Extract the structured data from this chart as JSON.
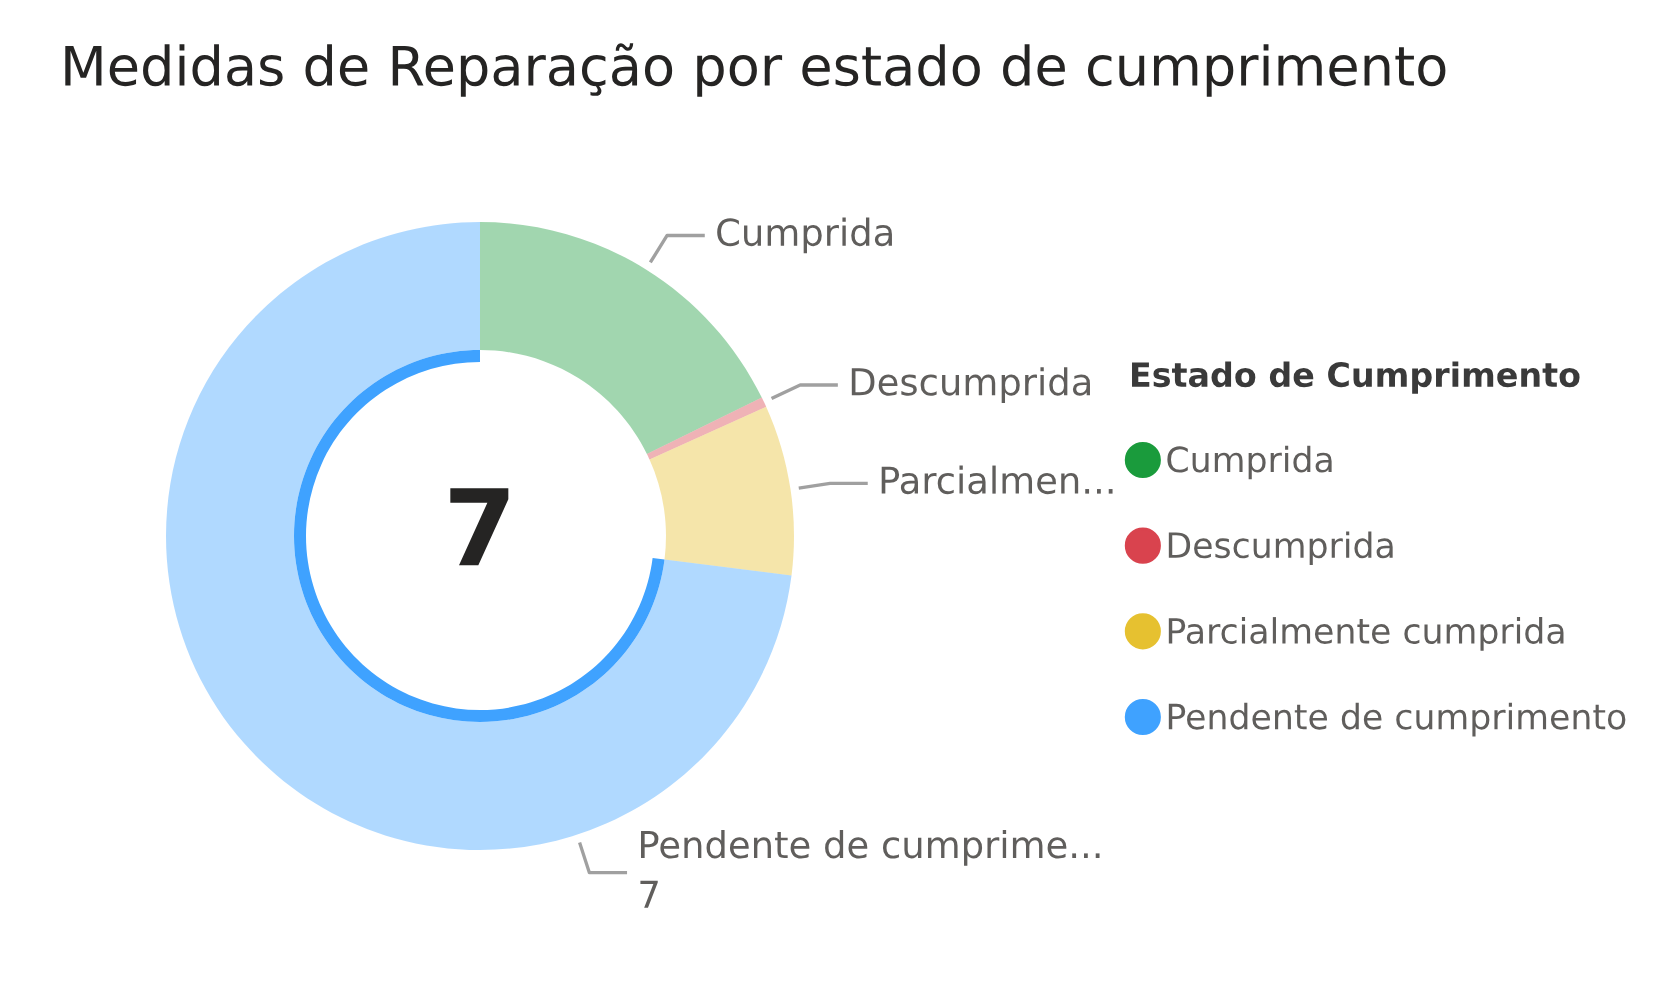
{
  "chart_data": {
    "type": "donut",
    "title": "Medidas de Reparação por estado de cumprimento",
    "categories": [
      "Cumprida",
      "Descumprida",
      "Parcialmente cumprida",
      "Pendente de cumprimento"
    ],
    "values": [
      1.7,
      0.05,
      0.84,
      7
    ],
    "colors": [
      "#1a9b3c",
      "#d9434e",
      "#e6c130",
      "#3fa2ff"
    ],
    "value_labels": [
      "Cumprida",
      "Descumprida",
      "Parcialmen...",
      "Pendente de cumprime...\n7"
    ],
    "legend": "right",
    "legend_title": "Estado de Cumprimento",
    "annotations": [
      "7"
    ]
  }
}
